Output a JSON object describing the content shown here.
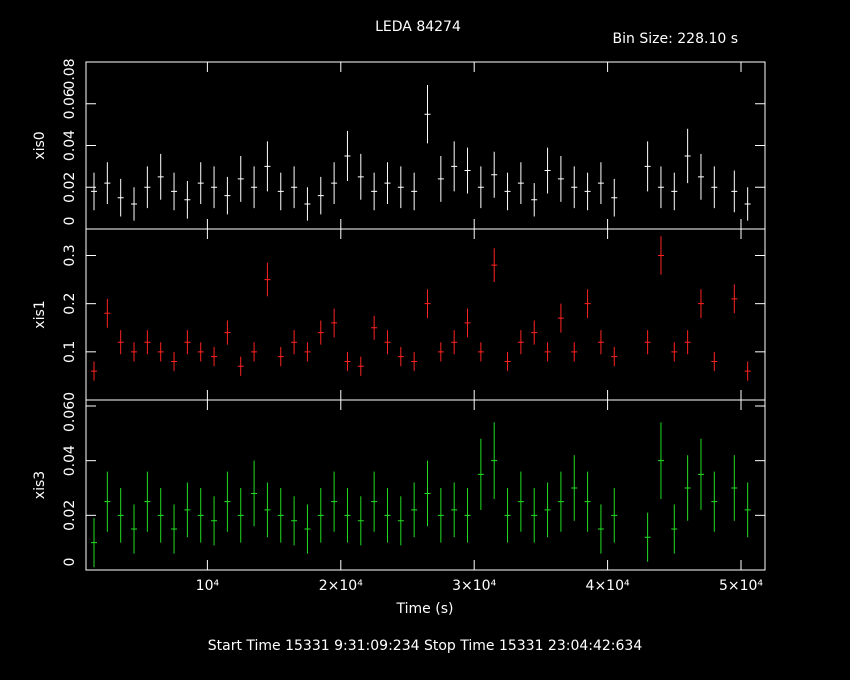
{
  "title": "LEDA 84274",
  "subtitle": "Bin Size: 228.10 s",
  "footer": "Start Time 15331  9:31:09:234    Stop Time 15331 23:04:42:634",
  "xaxis": {
    "label": "Time (s)",
    "xlim": [
      900,
      51800
    ],
    "xticks": [
      {
        "value": 10000,
        "label": "10⁴"
      },
      {
        "value": 20000,
        "label": "2×10⁴"
      },
      {
        "value": 30000,
        "label": "3×10⁴"
      },
      {
        "value": 40000,
        "label": "4×10⁴"
      },
      {
        "value": 50000,
        "label": "5×10⁴"
      }
    ]
  },
  "chart_data": [
    {
      "type": "errorbar",
      "ylabel": "xis0",
      "color": "#ffffff",
      "ylim": [
        0,
        0.08
      ],
      "yticks": [
        0,
        0.02,
        0.04,
        0.06,
        0.08
      ],
      "x": [
        1500,
        2500,
        3500,
        4500,
        5500,
        6500,
        7500,
        8500,
        9500,
        10500,
        11500,
        12500,
        13500,
        14500,
        15500,
        16500,
        17500,
        18500,
        19500,
        20500,
        21500,
        22500,
        23500,
        24500,
        25500,
        26500,
        27500,
        28500,
        29500,
        30500,
        31500,
        32500,
        33500,
        34500,
        35500,
        36500,
        37500,
        38500,
        39500,
        40500,
        43000,
        44000,
        45000,
        46000,
        47000,
        48000,
        49500,
        50500
      ],
      "values": [
        0.018,
        0.022,
        0.015,
        0.012,
        0.02,
        0.025,
        0.018,
        0.014,
        0.022,
        0.02,
        0.016,
        0.024,
        0.02,
        0.03,
        0.018,
        0.02,
        0.012,
        0.016,
        0.022,
        0.035,
        0.025,
        0.018,
        0.022,
        0.02,
        0.018,
        0.055,
        0.024,
        0.03,
        0.028,
        0.02,
        0.026,
        0.018,
        0.022,
        0.014,
        0.028,
        0.024,
        0.02,
        0.018,
        0.022,
        0.015,
        0.03,
        0.02,
        0.018,
        0.035,
        0.025,
        0.02,
        0.018,
        0.012
      ],
      "errors": [
        0.009,
        0.01,
        0.009,
        0.008,
        0.01,
        0.011,
        0.009,
        0.009,
        0.01,
        0.01,
        0.009,
        0.011,
        0.01,
        0.012,
        0.009,
        0.01,
        0.008,
        0.009,
        0.01,
        0.012,
        0.011,
        0.009,
        0.01,
        0.01,
        0.009,
        0.014,
        0.011,
        0.012,
        0.011,
        0.01,
        0.011,
        0.009,
        0.01,
        0.008,
        0.011,
        0.011,
        0.01,
        0.009,
        0.01,
        0.009,
        0.012,
        0.01,
        0.009,
        0.013,
        0.011,
        0.01,
        0.01,
        0.008
      ]
    },
    {
      "type": "errorbar",
      "ylabel": "xis1",
      "color": "#ff2222",
      "ylim": [
        0,
        0.355
      ],
      "yticks": [
        0.1,
        0.2,
        0.3
      ],
      "x": [
        1500,
        2500,
        3500,
        4500,
        5500,
        6500,
        7500,
        8500,
        9500,
        10500,
        11500,
        12500,
        13500,
        14500,
        15500,
        16500,
        17500,
        18500,
        19500,
        20500,
        21500,
        22500,
        23500,
        24500,
        25500,
        26500,
        27500,
        28500,
        29500,
        30500,
        31500,
        32500,
        33500,
        34500,
        35500,
        36500,
        37500,
        38500,
        39500,
        40500,
        43000,
        44000,
        45000,
        46000,
        47000,
        48000,
        49500,
        50500
      ],
      "values": [
        0.06,
        0.18,
        0.12,
        0.1,
        0.12,
        0.1,
        0.08,
        0.12,
        0.1,
        0.09,
        0.14,
        0.07,
        0.1,
        0.25,
        0.09,
        0.12,
        0.1,
        0.14,
        0.16,
        0.08,
        0.07,
        0.15,
        0.12,
        0.09,
        0.08,
        0.2,
        0.1,
        0.12,
        0.16,
        0.1,
        0.28,
        0.08,
        0.12,
        0.14,
        0.1,
        0.17,
        0.1,
        0.2,
        0.12,
        0.09,
        0.12,
        0.3,
        0.1,
        0.12,
        0.2,
        0.08,
        0.21,
        0.06
      ],
      "errors": [
        0.02,
        0.03,
        0.025,
        0.02,
        0.025,
        0.02,
        0.02,
        0.025,
        0.02,
        0.02,
        0.025,
        0.02,
        0.02,
        0.035,
        0.02,
        0.025,
        0.02,
        0.025,
        0.03,
        0.02,
        0.02,
        0.025,
        0.025,
        0.02,
        0.02,
        0.03,
        0.02,
        0.025,
        0.03,
        0.02,
        0.035,
        0.02,
        0.025,
        0.025,
        0.02,
        0.03,
        0.02,
        0.03,
        0.025,
        0.02,
        0.025,
        0.04,
        0.02,
        0.025,
        0.03,
        0.02,
        0.03,
        0.02
      ]
    },
    {
      "type": "errorbar",
      "ylabel": "xis3",
      "color": "#22dd22",
      "ylim": [
        0,
        0.0622
      ],
      "yticks": [
        0,
        0.02,
        0.04,
        {
          "value": 0.06,
          "label": "0.060"
        }
      ],
      "x": [
        1500,
        2500,
        3500,
        4500,
        5500,
        6500,
        7500,
        8500,
        9500,
        10500,
        11500,
        12500,
        13500,
        14500,
        15500,
        16500,
        17500,
        18500,
        19500,
        20500,
        21500,
        22500,
        23500,
        24500,
        25500,
        26500,
        27500,
        28500,
        29500,
        30500,
        31500,
        32500,
        33500,
        34500,
        35500,
        36500,
        37500,
        38500,
        39500,
        40500,
        43000,
        44000,
        45000,
        46000,
        47000,
        48000,
        49500,
        50500
      ],
      "values": [
        0.01,
        0.025,
        0.02,
        0.015,
        0.025,
        0.02,
        0.015,
        0.022,
        0.02,
        0.018,
        0.025,
        0.02,
        0.028,
        0.022,
        0.02,
        0.018,
        0.015,
        0.02,
        0.025,
        0.02,
        0.018,
        0.025,
        0.02,
        0.018,
        0.022,
        0.028,
        0.02,
        0.022,
        0.02,
        0.035,
        0.04,
        0.02,
        0.025,
        0.02,
        0.022,
        0.025,
        0.03,
        0.025,
        0.015,
        0.02,
        0.012,
        0.04,
        0.015,
        0.03,
        0.035,
        0.025,
        0.03,
        0.022
      ],
      "errors": [
        0.009,
        0.011,
        0.01,
        0.009,
        0.011,
        0.01,
        0.009,
        0.01,
        0.01,
        0.009,
        0.011,
        0.01,
        0.012,
        0.01,
        0.01,
        0.009,
        0.009,
        0.01,
        0.011,
        0.01,
        0.009,
        0.011,
        0.01,
        0.009,
        0.01,
        0.012,
        0.01,
        0.01,
        0.01,
        0.013,
        0.014,
        0.01,
        0.011,
        0.01,
        0.01,
        0.011,
        0.012,
        0.011,
        0.009,
        0.01,
        0.009,
        0.014,
        0.009,
        0.012,
        0.013,
        0.011,
        0.012,
        0.01
      ]
    }
  ]
}
